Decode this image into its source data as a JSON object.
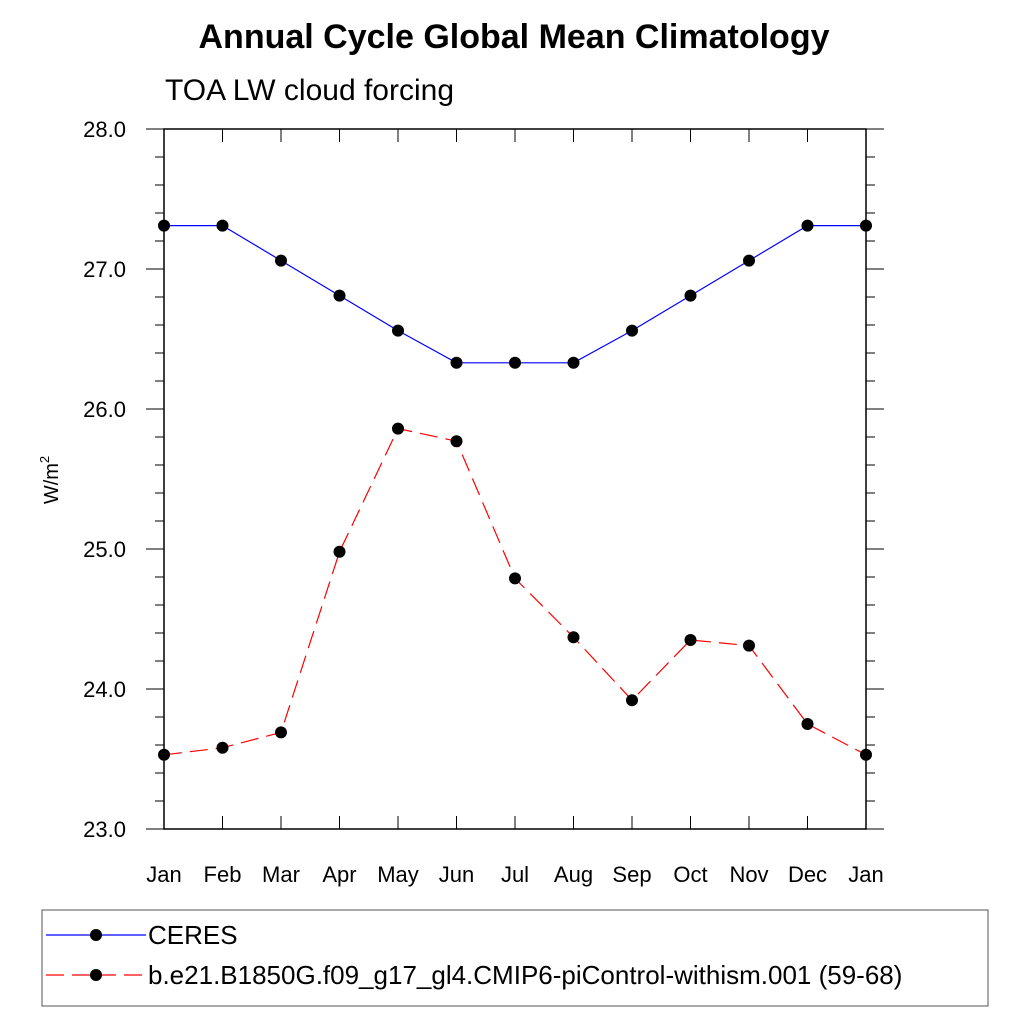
{
  "chart_data": {
    "type": "line",
    "title": "Annual Cycle Global Mean Climatology",
    "subtitle": "TOA LW cloud forcing",
    "ylabel": "W/m",
    "ylabel_sup": "2",
    "ylim": [
      23.0,
      28.0
    ],
    "yticks": [
      "28.0",
      "27.0",
      "26.0",
      "25.0",
      "24.0",
      "23.0"
    ],
    "yticks_values": [
      28.0,
      27.0,
      26.0,
      25.0,
      24.0,
      23.0
    ],
    "categories": [
      "Jan",
      "Feb",
      "Mar",
      "Apr",
      "May",
      "Jun",
      "Jul",
      "Aug",
      "Sep",
      "Oct",
      "Nov",
      "Dec",
      "Jan"
    ],
    "grid": false,
    "legend_position": "bottom",
    "series": [
      {
        "name": "CERES",
        "color": "#0000ff",
        "style": "solid",
        "values": [
          27.31,
          27.31,
          27.06,
          26.81,
          26.56,
          26.33,
          26.33,
          26.33,
          26.56,
          26.81,
          27.06,
          27.31,
          27.31
        ]
      },
      {
        "name": "b.e21.B1850G.f09_g17_gl4.CMIP6-piControl-withism.001 (59-68)",
        "color": "#ff0000",
        "style": "dashed",
        "values": [
          23.53,
          23.58,
          23.69,
          24.98,
          25.86,
          25.77,
          24.79,
          24.37,
          23.92,
          24.35,
          24.31,
          23.75,
          23.53
        ]
      }
    ]
  }
}
